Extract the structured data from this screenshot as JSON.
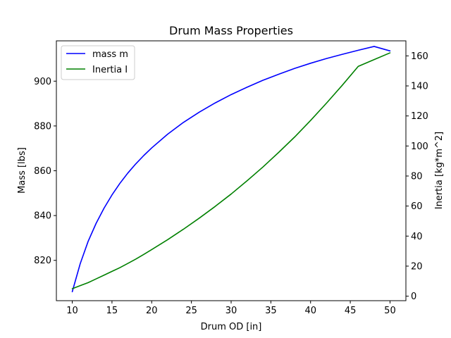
{
  "chart_data": {
    "type": "line",
    "title": "Drum Mass Properties",
    "xlabel": "Drum OD [in]",
    "ylabel": "Mass [lbs]",
    "y2label": "Inertia [kg*m^2]",
    "xlim": [
      8,
      52
    ],
    "ylim": [
      802,
      918
    ],
    "y2lim": [
      -3,
      170
    ],
    "x_ticks": [
      "10",
      "15",
      "20",
      "25",
      "30",
      "35",
      "40",
      "45",
      "50"
    ],
    "y_ticks": [
      "820",
      "840",
      "860",
      "880",
      "900"
    ],
    "y2_ticks": [
      "0",
      "20",
      "40",
      "60",
      "80",
      "100",
      "120",
      "140",
      "160"
    ],
    "grid": false,
    "legend_position": "top-left",
    "x": [
      10,
      11,
      12,
      13,
      14,
      15,
      16,
      17,
      18,
      19,
      20,
      22,
      24,
      26,
      28,
      30,
      32,
      34,
      36,
      38,
      40,
      42,
      44,
      46,
      48,
      50
    ],
    "series": [
      {
        "name": "mass m",
        "axis": "left",
        "color": "#0000ff",
        "values": [
          806.0,
          818.5,
          828.5,
          836.5,
          843.3,
          849.2,
          854.4,
          859.0,
          863.1,
          866.8,
          870.2,
          876.3,
          881.6,
          886.2,
          890.3,
          894.0,
          897.3,
          900.4,
          903.1,
          905.7,
          908.0,
          910.1,
          912.0,
          913.8,
          915.5,
          913.5
        ]
      },
      {
        "name": "Inertia I",
        "axis": "right",
        "color": "#008000",
        "values": [
          5.0,
          7.0,
          9.0,
          11.5,
          14.0,
          16.5,
          19.0,
          21.8,
          24.7,
          27.8,
          31.0,
          37.6,
          44.6,
          52.0,
          59.8,
          68.0,
          76.8,
          86.0,
          95.8,
          106.0,
          117.0,
          128.5,
          140.5,
          153.0,
          157.5,
          162.0
        ]
      }
    ]
  }
}
